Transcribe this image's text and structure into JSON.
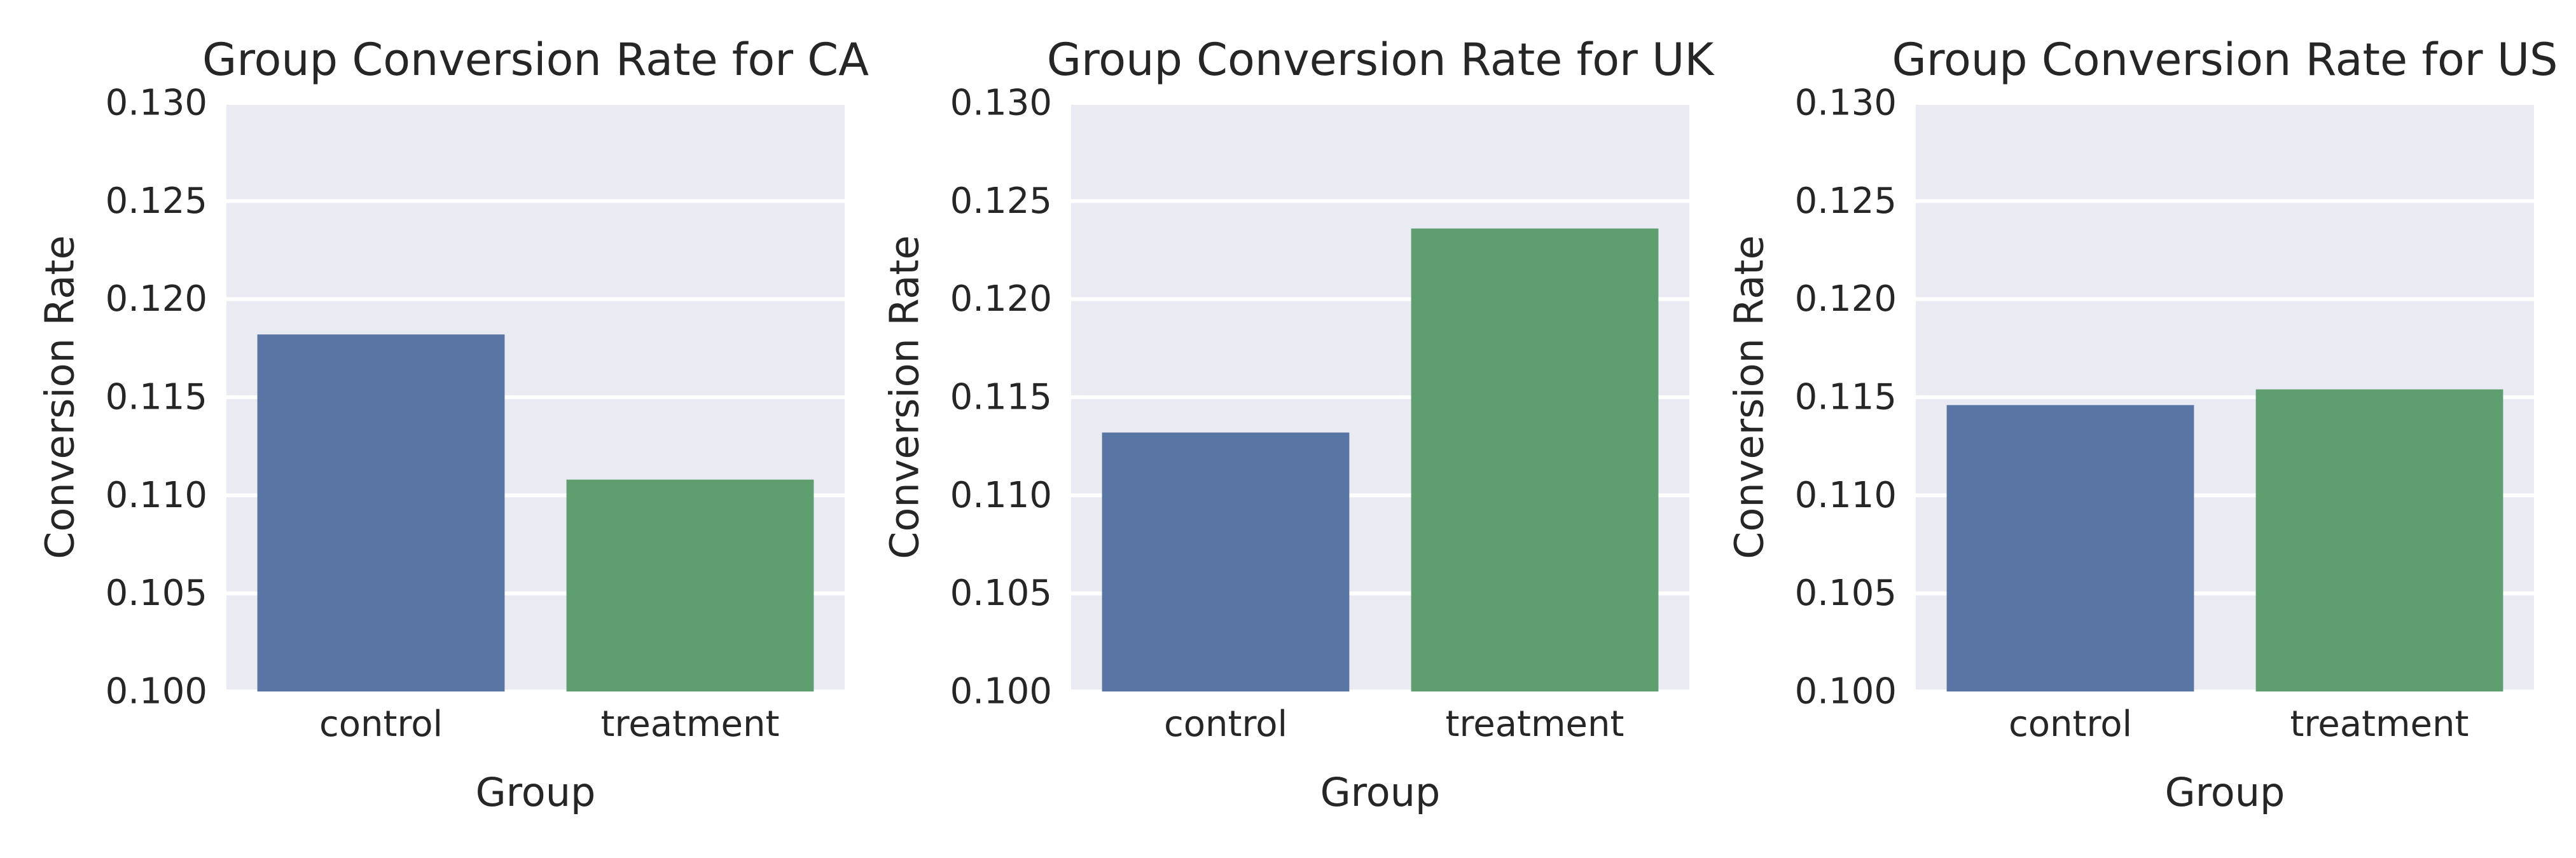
{
  "chart_data": [
    {
      "type": "bar",
      "title": "Group Conversion Rate for CA",
      "xlabel": "Group",
      "ylabel": "Conversion Rate",
      "categories": [
        "control",
        "treatment"
      ],
      "values": [
        0.1182,
        0.1108
      ],
      "ylim": [
        0.1,
        0.13
      ],
      "yticks": [
        "0.100",
        "0.105",
        "0.110",
        "0.115",
        "0.120",
        "0.125",
        "0.130"
      ],
      "colors": [
        "#5975A4",
        "#5F9E6E"
      ],
      "grid": true
    },
    {
      "type": "bar",
      "title": "Group Conversion Rate for UK",
      "xlabel": "Group",
      "ylabel": "Conversion Rate",
      "categories": [
        "control",
        "treatment"
      ],
      "values": [
        0.1132,
        0.1236
      ],
      "ylim": [
        0.1,
        0.13
      ],
      "yticks": [
        "0.100",
        "0.105",
        "0.110",
        "0.115",
        "0.120",
        "0.125",
        "0.130"
      ],
      "colors": [
        "#5975A4",
        "#5F9E6E"
      ],
      "grid": true
    },
    {
      "type": "bar",
      "title": "Group Conversion Rate for US",
      "xlabel": "Group",
      "ylabel": "Conversion Rate",
      "categories": [
        "control",
        "treatment"
      ],
      "values": [
        0.1146,
        0.1154
      ],
      "ylim": [
        0.1,
        0.13
      ],
      "yticks": [
        "0.100",
        "0.105",
        "0.110",
        "0.115",
        "0.120",
        "0.125",
        "0.130"
      ],
      "colors": [
        "#5975A4",
        "#5F9E6E"
      ],
      "grid": true
    }
  ]
}
